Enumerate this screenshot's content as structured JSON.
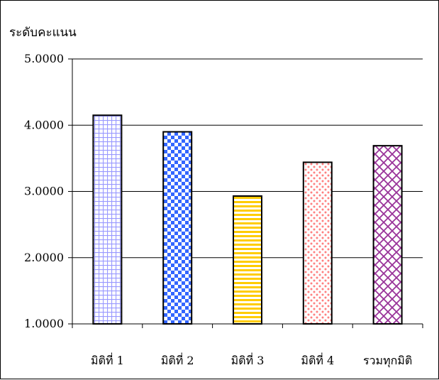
{
  "chart_data": {
    "type": "bar",
    "ylabel": "ระดับคะแนน",
    "xlabel": "",
    "title": "",
    "categories": [
      "มิติที่ 1",
      "มิติที่ 2",
      "มิติที่ 3",
      "มิติที่ 4",
      "รวมทุกมิติ"
    ],
    "values": [
      4.15,
      3.9,
      2.93,
      3.44,
      3.69
    ],
    "ylim": [
      1.0,
      5.0
    ],
    "yticks": [
      "1.0000",
      "2.0000",
      "3.0000",
      "4.0000",
      "5.0000"
    ],
    "grid": true,
    "legend": "none",
    "bar_patterns": [
      "fine-grid",
      "checkerboard",
      "horizontal-stripes",
      "dots",
      "diagonal-crosshatch"
    ],
    "bar_colors": [
      "#9999ff",
      "#3366ff",
      "#ffcc00",
      "#ff8080",
      "#993399"
    ]
  }
}
